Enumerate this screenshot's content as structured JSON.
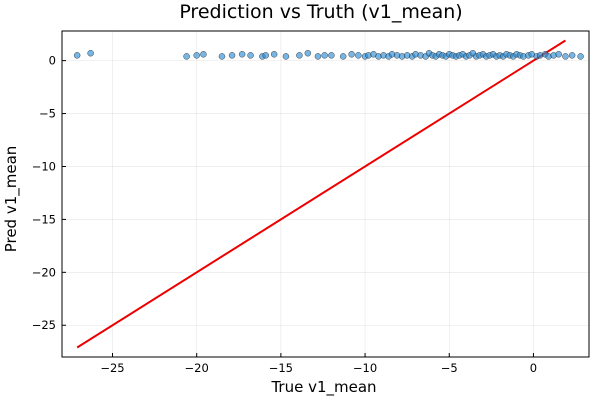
{
  "chart_data": {
    "type": "scatter",
    "title": "Prediction vs Truth (v1_mean)",
    "xlabel": "True v1_mean",
    "ylabel": "Pred v1_mean",
    "xlim": [
      -28.0,
      3.3
    ],
    "ylim": [
      -28.0,
      2.8
    ],
    "xticks": [
      -25,
      -20,
      -15,
      -10,
      -5,
      0
    ],
    "yticks": [
      0,
      -5,
      -10,
      -15,
      -20,
      -25
    ],
    "grid": true,
    "legend": "none",
    "colors": {
      "points": "#2e8ed6",
      "reference_line": "#ee0000"
    },
    "reference_line": {
      "x": [
        -27.1,
        1.9
      ],
      "y": [
        -27.1,
        1.9
      ]
    },
    "series": [
      {
        "x": [
          -27.1,
          -26.3,
          -20.6,
          -20.0,
          -19.6,
          -18.5,
          -17.9,
          -17.3,
          -16.8,
          -16.1,
          -15.9,
          -15.4,
          -14.7,
          -13.9,
          -13.4,
          -12.8,
          -12.4,
          -12.0,
          -11.3,
          -10.8,
          -10.4,
          -10.0,
          -9.8,
          -9.5,
          -9.2,
          -8.9,
          -8.6,
          -8.4,
          -8.1,
          -7.8,
          -7.5,
          -7.2,
          -7.0,
          -6.7,
          -6.4,
          -6.2,
          -6.0,
          -5.8,
          -5.6,
          -5.4,
          -5.2,
          -5.0,
          -4.8,
          -4.6,
          -4.4,
          -4.2,
          -4.0,
          -3.8,
          -3.6,
          -3.4,
          -3.2,
          -3.0,
          -2.8,
          -2.6,
          -2.4,
          -2.2,
          -2.0,
          -1.8,
          -1.6,
          -1.4,
          -1.2,
          -1.0,
          -0.8,
          -0.6,
          -0.3,
          -0.1,
          0.2,
          0.4,
          0.7,
          0.9,
          1.2,
          1.5,
          1.9,
          2.3,
          2.8
        ],
        "y": [
          0.5,
          0.7,
          0.4,
          0.5,
          0.6,
          0.4,
          0.5,
          0.6,
          0.5,
          0.4,
          0.5,
          0.6,
          0.4,
          0.5,
          0.7,
          0.4,
          0.5,
          0.5,
          0.4,
          0.6,
          0.5,
          0.4,
          0.5,
          0.6,
          0.4,
          0.5,
          0.4,
          0.6,
          0.5,
          0.4,
          0.5,
          0.4,
          0.6,
          0.5,
          0.4,
          0.7,
          0.5,
          0.4,
          0.6,
          0.5,
          0.4,
          0.6,
          0.5,
          0.4,
          0.5,
          0.6,
          0.4,
          0.5,
          0.7,
          0.4,
          0.5,
          0.6,
          0.4,
          0.5,
          0.6,
          0.4,
          0.5,
          0.4,
          0.6,
          0.5,
          0.4,
          0.6,
          0.5,
          0.4,
          0.5,
          0.6,
          0.4,
          0.5,
          0.6,
          0.4,
          0.5,
          0.6,
          0.4,
          0.5,
          0.4
        ]
      }
    ]
  }
}
